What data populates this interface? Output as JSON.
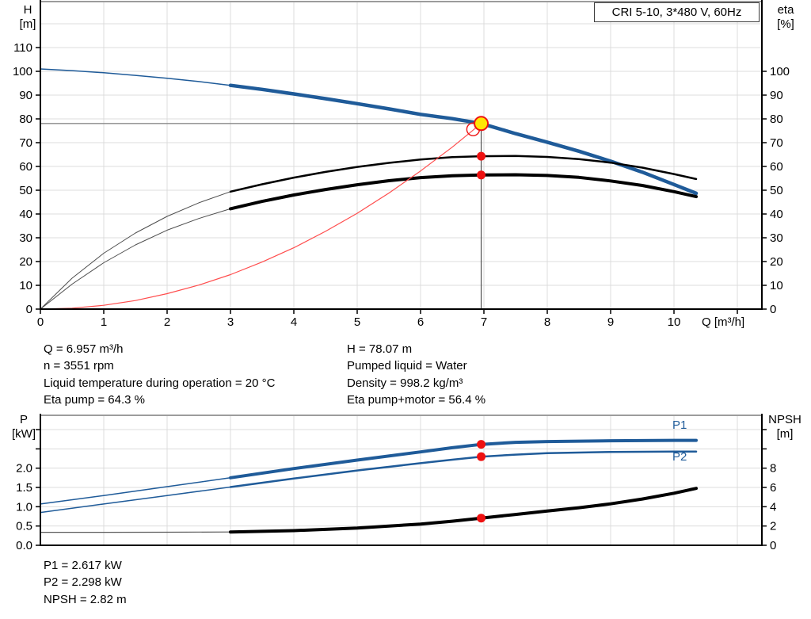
{
  "title_box": "CRI 5-10, 3*480 V, 60Hz",
  "labels": {
    "h": "H",
    "h_unit": "[m]",
    "eta": "eta",
    "eta_unit": "[%]",
    "q_axis": "Q [m³/h]",
    "p": "P",
    "p_unit": "[kW]",
    "npsh": "NPSH",
    "npsh_unit": "[m]",
    "p1": "P1",
    "p2": "P2"
  },
  "info": {
    "mid_left": [
      "Q = 6.957 m³/h",
      "n = 3551 rpm",
      "Liquid temperature during operation = 20 °C",
      "Eta pump = 64.3 %"
    ],
    "mid_right": [
      "H = 78.07 m",
      "Pumped liquid = Water",
      "Density = 998.2 kg/m³",
      "Eta pump+motor = 56.4 %"
    ],
    "bottom": [
      "P1 = 2.617 kW",
      "P2 = 2.298 kW",
      "NPSH = 2.82 m"
    ]
  },
  "colors": {
    "blue": "#1f5b99",
    "black": "#000000",
    "thin_gray": "#4d4d4d",
    "npsh_thin": "#5a5a5a",
    "red": "#ee1111",
    "system_red": "#ff4d4d",
    "yellow": "#ffe604",
    "grid": "#dcdcdc",
    "border": "#9c9c9c",
    "ref_h": "#8a8a8a",
    "ref_v": "#4d4d4d"
  },
  "operating_point": {
    "q": 6.957,
    "h": 78.07,
    "eta_pump": 64.3,
    "eta_pump_motor": 56.4,
    "p1": 2.617,
    "p2": 2.298,
    "npsh": 2.82
  },
  "chart_data": [
    {
      "type": "line",
      "id": "qh",
      "x_axis": {
        "label": "Q [m³/h]",
        "range": [
          0,
          11.4
        ],
        "tick_values": [
          0,
          1,
          2,
          3,
          4,
          5,
          6,
          7,
          8,
          9,
          10,
          11
        ],
        "tick_labels": [
          "0",
          "1",
          "2",
          "3",
          "4",
          "5",
          "6",
          "7",
          "8",
          "9",
          "10",
          ""
        ],
        "grid_values": [
          1,
          2,
          3,
          4,
          5,
          6,
          7,
          8,
          9,
          10,
          11
        ]
      },
      "y_left": {
        "label": "H [m]",
        "range": [
          0,
          129
        ],
        "tick_values": [
          0,
          10,
          20,
          30,
          40,
          50,
          60,
          70,
          80,
          90,
          100,
          110
        ],
        "tick_labels": [
          "0",
          "10",
          "20",
          "30",
          "40",
          "50",
          "60",
          "70",
          "80",
          "90",
          "100",
          "110"
        ],
        "grid_values": [
          10,
          20,
          30,
          40,
          50,
          60,
          70,
          80,
          90,
          100,
          110,
          120
        ]
      },
      "y_right": {
        "label": "eta [%]",
        "range": [
          0,
          129
        ],
        "tick_values": [
          0,
          10,
          20,
          30,
          40,
          50,
          60,
          70,
          80,
          90,
          100
        ],
        "tick_labels": [
          "0",
          "10",
          "20",
          "30",
          "40",
          "50",
          "60",
          "70",
          "80",
          "90",
          "100"
        ]
      },
      "series": [
        {
          "name": "qh-curve-thin",
          "axis": "L",
          "color": "blue",
          "width": 1.5,
          "points": [
            [
              0,
              101
            ],
            [
              0.5,
              100.3
            ],
            [
              1,
              99.4
            ],
            [
              1.5,
              98.3
            ],
            [
              2,
              97.1
            ],
            [
              2.5,
              95.7
            ],
            [
              3,
              94.1
            ]
          ]
        },
        {
          "name": "qh-curve",
          "axis": "L",
          "color": "blue",
          "width": 4.5,
          "points": [
            [
              3,
              94.1
            ],
            [
              3.5,
              92.4
            ],
            [
              4,
              90.5
            ],
            [
              4.5,
              88.5
            ],
            [
              5,
              86.4
            ],
            [
              5.5,
              84.2
            ],
            [
              6,
              81.9
            ],
            [
              6.5,
              80.1
            ],
            [
              6.957,
              78.07
            ],
            [
              7.5,
              73.8
            ],
            [
              8,
              70.2
            ],
            [
              8.5,
              66.4
            ],
            [
              9,
              62.2
            ],
            [
              9.5,
              57.6
            ],
            [
              10,
              52.4
            ],
            [
              10.35,
              48.7
            ]
          ]
        },
        {
          "name": "eta-pump-thin",
          "axis": "R",
          "color": "thin_gray",
          "width": 1,
          "points": [
            [
              0,
              0
            ],
            [
              0.5,
              13
            ],
            [
              1,
              23.5
            ],
            [
              1.5,
              32
            ],
            [
              2,
              39
            ],
            [
              2.5,
              44.7
            ],
            [
              3,
              49.4
            ]
          ]
        },
        {
          "name": "eta-pump",
          "axis": "R",
          "color": "black",
          "width": 2.5,
          "points": [
            [
              3,
              49.4
            ],
            [
              3.5,
              52.5
            ],
            [
              4,
              55.3
            ],
            [
              4.5,
              57.7
            ],
            [
              5,
              59.8
            ],
            [
              5.5,
              61.5
            ],
            [
              6,
              62.9
            ],
            [
              6.5,
              63.9
            ],
            [
              6.957,
              64.3
            ],
            [
              7.5,
              64.4
            ],
            [
              8,
              64
            ],
            [
              8.5,
              63.1
            ],
            [
              9,
              61.6
            ],
            [
              9.5,
              59.5
            ],
            [
              10,
              56.8
            ],
            [
              10.35,
              54.7
            ]
          ]
        },
        {
          "name": "eta-pump-motor-thin",
          "axis": "R",
          "color": "thin_gray",
          "width": 1,
          "points": [
            [
              0,
              0
            ],
            [
              0.5,
              10.5
            ],
            [
              1,
              19.5
            ],
            [
              1.5,
              27
            ],
            [
              2,
              33.2
            ],
            [
              2.5,
              38.1
            ],
            [
              3,
              42.2
            ]
          ]
        },
        {
          "name": "eta-pump-motor",
          "axis": "R",
          "color": "black",
          "width": 4,
          "points": [
            [
              3,
              42.2
            ],
            [
              3.5,
              45.3
            ],
            [
              4,
              48
            ],
            [
              4.5,
              50.3
            ],
            [
              5,
              52.3
            ],
            [
              5.5,
              54
            ],
            [
              6,
              55.3
            ],
            [
              6.5,
              56.1
            ],
            [
              6.957,
              56.4
            ],
            [
              7.5,
              56.5
            ],
            [
              8,
              56.2
            ],
            [
              8.5,
              55.4
            ],
            [
              9,
              53.9
            ],
            [
              9.5,
              52
            ],
            [
              10,
              49.4
            ],
            [
              10.35,
              47.3
            ]
          ]
        },
        {
          "name": "system-curve",
          "axis": "L",
          "color": "system_red",
          "width": 1.2,
          "points": [
            [
              0,
              0
            ],
            [
              0.5,
              0.4
            ],
            [
              1,
              1.6
            ],
            [
              1.5,
              3.6
            ],
            [
              2,
              6.5
            ],
            [
              2.5,
              10.1
            ],
            [
              3,
              14.5
            ],
            [
              3.5,
              19.8
            ],
            [
              4,
              25.8
            ],
            [
              4.5,
              32.7
            ],
            [
              5,
              40.3
            ],
            [
              5.5,
              48.8
            ],
            [
              6,
              58.1
            ],
            [
              6.5,
              68.1
            ],
            [
              6.957,
              78.07
            ]
          ]
        }
      ],
      "markers": [
        {
          "name": "duty-point-ring",
          "type": "open",
          "axis": "L",
          "q": 6.83,
          "v": 75.6
        },
        {
          "name": "operating-point",
          "type": "op",
          "axis": "L",
          "q": 6.957,
          "v": 78.07
        },
        {
          "name": "eta-pump-dot",
          "type": "dot",
          "axis": "R",
          "q": 6.957,
          "v": 64.3
        },
        {
          "name": "eta-pump-motor-dot",
          "type": "dot",
          "axis": "R",
          "q": 6.957,
          "v": 56.4
        }
      ],
      "reference_lines": [
        {
          "type": "h",
          "axis": "L",
          "value": 78.07,
          "to_q": 6.957
        },
        {
          "type": "v",
          "axis": "L",
          "q": 6.957,
          "from_value": 78.07
        }
      ]
    },
    {
      "type": "line",
      "id": "power",
      "x_axis": {
        "label": "",
        "range": [
          0,
          11.4
        ],
        "tick_values": [],
        "tick_labels": [],
        "grid_values": [
          1,
          2,
          3,
          4,
          5,
          6,
          7,
          8,
          9,
          10,
          11
        ]
      },
      "y_left": {
        "label": "P [kW]",
        "range": [
          0,
          3.37
        ],
        "tick_values": [
          0,
          0.5,
          1,
          1.5,
          2,
          2.5,
          3
        ],
        "tick_labels": [
          "0.0",
          "0.5",
          "1.0",
          "1.5",
          "2.0",
          "",
          ""
        ],
        "grid_values": [
          0.5,
          1,
          1.5,
          2,
          2.5,
          3
        ]
      },
      "y_right": {
        "label": "NPSH [m]",
        "range": [
          0,
          13.5
        ],
        "tick_values": [
          0,
          2,
          4,
          6,
          8,
          10,
          12
        ],
        "tick_labels": [
          "0",
          "2",
          "4",
          "6",
          "8",
          "",
          ""
        ]
      },
      "series": [
        {
          "name": "p1-curve-thin",
          "axis": "L",
          "color": "blue",
          "width": 1.5,
          "points": [
            [
              0,
              1.07
            ],
            [
              1,
              1.29
            ],
            [
              2,
              1.52
            ],
            [
              3,
              1.75
            ]
          ]
        },
        {
          "name": "p1-curve",
          "axis": "L",
          "color": "blue",
          "width": 4,
          "points": [
            [
              3,
              1.75
            ],
            [
              4,
              1.99
            ],
            [
              5,
              2.21
            ],
            [
              6,
              2.42
            ],
            [
              6.5,
              2.53
            ],
            [
              6.957,
              2.617
            ],
            [
              7.5,
              2.67
            ],
            [
              8,
              2.69
            ],
            [
              9,
              2.71
            ],
            [
              10,
              2.72
            ],
            [
              10.35,
              2.72
            ]
          ]
        },
        {
          "name": "p2-curve-thin",
          "axis": "L",
          "color": "blue",
          "width": 1.5,
          "points": [
            [
              0,
              0.85
            ],
            [
              1,
              1.07
            ],
            [
              2,
              1.29
            ],
            [
              3,
              1.51
            ]
          ]
        },
        {
          "name": "p2-curve",
          "axis": "L",
          "color": "blue",
          "width": 2.5,
          "points": [
            [
              3,
              1.51
            ],
            [
              4,
              1.73
            ],
            [
              5,
              1.94
            ],
            [
              6,
              2.13
            ],
            [
              6.5,
              2.22
            ],
            [
              6.957,
              2.298
            ],
            [
              7.5,
              2.35
            ],
            [
              8,
              2.39
            ],
            [
              9,
              2.42
            ],
            [
              10,
              2.43
            ],
            [
              10.35,
              2.43
            ]
          ]
        },
        {
          "name": "npsh-curve-thin",
          "axis": "R",
          "color": "npsh_thin",
          "width": 1.2,
          "points": [
            [
              0,
              1.35
            ],
            [
              1,
              1.35
            ],
            [
              2,
              1.36
            ],
            [
              3,
              1.38
            ]
          ]
        },
        {
          "name": "npsh-curve",
          "axis": "R",
          "color": "black",
          "width": 4,
          "points": [
            [
              3,
              1.38
            ],
            [
              4,
              1.52
            ],
            [
              5,
              1.78
            ],
            [
              6,
              2.2
            ],
            [
              6.5,
              2.5
            ],
            [
              6.957,
              2.82
            ],
            [
              7.5,
              3.2
            ],
            [
              8,
              3.55
            ],
            [
              8.5,
              3.9
            ],
            [
              9,
              4.3
            ],
            [
              9.5,
              4.8
            ],
            [
              10,
              5.4
            ],
            [
              10.35,
              5.9
            ]
          ]
        }
      ],
      "markers": [
        {
          "name": "p1-dot",
          "type": "dot",
          "axis": "L",
          "q": 6.957,
          "v": 2.617
        },
        {
          "name": "p2-dot",
          "type": "dot",
          "axis": "L",
          "q": 6.957,
          "v": 2.298
        },
        {
          "name": "npsh-dot",
          "type": "dot",
          "axis": "R",
          "q": 6.957,
          "v": 2.82
        }
      ],
      "reference_lines": []
    }
  ]
}
